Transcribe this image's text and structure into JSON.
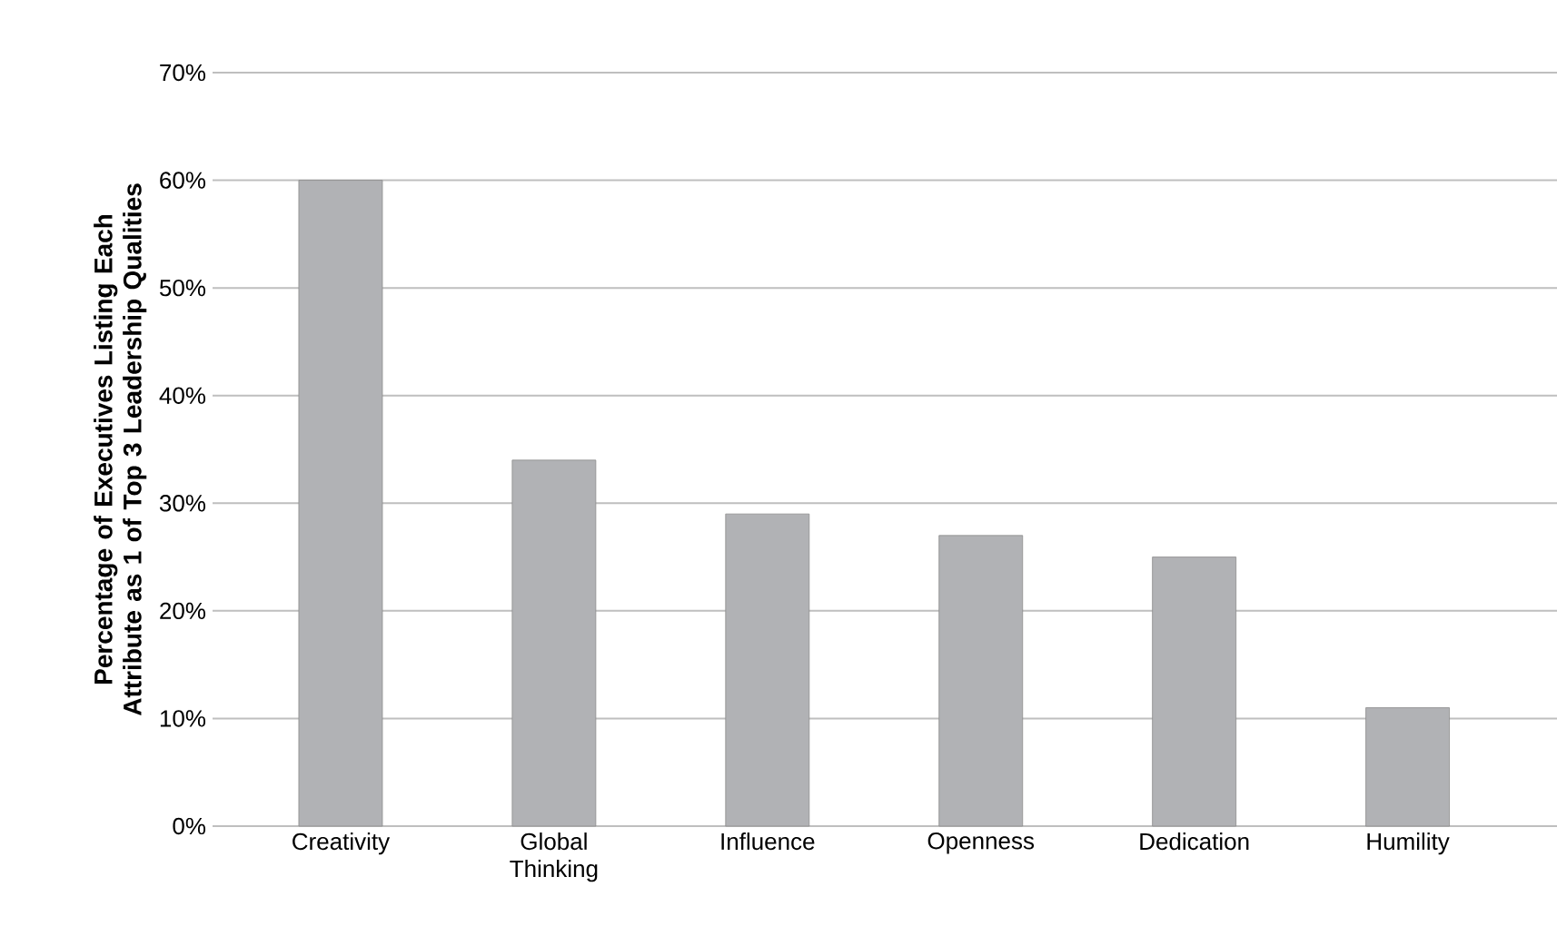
{
  "chart_data": {
    "type": "bar",
    "ylabel": "Percentage of Executives Listing Each Attribute as 1 of Top 3 Leadership Qualities",
    "categories": [
      "Creativity",
      "Global Thinking",
      "Influence",
      "Openness",
      "Dedication",
      "Humility"
    ],
    "values": [
      60,
      34,
      29,
      27,
      25,
      11
    ],
    "color": "#b1b2b5",
    "ylim": [
      0,
      70
    ],
    "yticks": [
      {
        "value": 0,
        "label": "0%"
      },
      {
        "value": 10,
        "label": "10%"
      },
      {
        "value": 20,
        "label": "20%"
      },
      {
        "value": 30,
        "label": "30%"
      },
      {
        "value": 40,
        "label": "40%"
      },
      {
        "value": 50,
        "label": "50%"
      },
      {
        "value": 60,
        "label": "60%"
      },
      {
        "value": 70,
        "label": "70%"
      }
    ],
    "grid": "y"
  }
}
